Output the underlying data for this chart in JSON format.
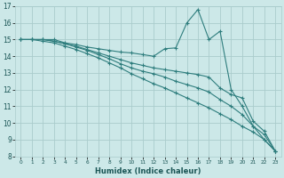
{
  "xlabel": "Humidex (Indice chaleur)",
  "xlim": [
    -0.5,
    23.5
  ],
  "ylim": [
    8,
    17
  ],
  "xticks": [
    0,
    1,
    2,
    3,
    4,
    5,
    6,
    7,
    8,
    9,
    10,
    11,
    12,
    13,
    14,
    15,
    16,
    17,
    18,
    19,
    20,
    21,
    22,
    23
  ],
  "yticks": [
    8,
    9,
    10,
    11,
    12,
    13,
    14,
    15,
    16,
    17
  ],
  "bg_color": "#cce8e8",
  "grid_color": "#aacccc",
  "line_color": "#2e7d7d",
  "lines": [
    {
      "x": [
        0,
        1,
        2,
        3,
        4,
        5,
        6,
        7,
        8,
        9,
        10,
        11,
        12,
        13,
        14,
        15,
        16,
        17,
        18,
        19,
        20,
        21,
        22,
        23
      ],
      "y": [
        15,
        15,
        15,
        15,
        14.8,
        14.7,
        14.55,
        14.45,
        14.35,
        14.25,
        14.2,
        14.1,
        14.0,
        14.45,
        14.5,
        16.0,
        16.8,
        15.0,
        15.5,
        12.0,
        11.0,
        9.8,
        9.3,
        8.3
      ]
    },
    {
      "x": [
        0,
        1,
        2,
        3,
        4,
        5,
        6,
        7,
        8,
        9,
        10,
        11,
        12,
        13,
        14,
        15,
        16,
        17,
        18,
        19,
        20,
        21,
        22,
        23
      ],
      "y": [
        15,
        15,
        15,
        14.9,
        14.75,
        14.6,
        14.4,
        14.2,
        14.0,
        13.8,
        13.6,
        13.45,
        13.3,
        13.2,
        13.1,
        13.0,
        12.9,
        12.75,
        12.1,
        11.7,
        11.5,
        10.1,
        9.5,
        8.3
      ]
    },
    {
      "x": [
        0,
        1,
        2,
        3,
        4,
        5,
        6,
        7,
        8,
        9,
        10,
        11,
        12,
        13,
        14,
        15,
        16,
        17,
        18,
        19,
        20,
        21,
        22,
        23
      ],
      "y": [
        15,
        15,
        15,
        14.9,
        14.75,
        14.55,
        14.35,
        14.1,
        13.85,
        13.55,
        13.3,
        13.1,
        12.95,
        12.75,
        12.5,
        12.3,
        12.1,
        11.85,
        11.4,
        11.0,
        10.5,
        9.8,
        9.0,
        8.3
      ]
    },
    {
      "x": [
        0,
        1,
        2,
        3,
        4,
        5,
        6,
        7,
        8,
        9,
        10,
        11,
        12,
        13,
        14,
        15,
        16,
        17,
        18,
        19,
        20,
        21,
        22,
        23
      ],
      "y": [
        15,
        15,
        14.9,
        14.8,
        14.6,
        14.4,
        14.15,
        13.9,
        13.6,
        13.3,
        12.95,
        12.65,
        12.35,
        12.1,
        11.8,
        11.5,
        11.2,
        10.9,
        10.55,
        10.2,
        9.8,
        9.45,
        9.0,
        8.3
      ]
    }
  ]
}
